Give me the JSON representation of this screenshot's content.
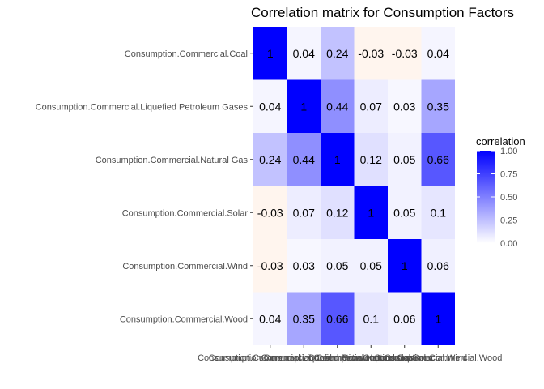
{
  "chart_data": {
    "type": "heatmap",
    "title": "Correlation matrix for Consumption Factors",
    "xlabel": "",
    "ylabel": "",
    "variables": [
      "Consumption.Commercial.Coal",
      "Consumption.Commercial.Liquefied Petroleum Gases",
      "Consumption.Commercial.Natural Gas",
      "Consumption.Commercial.Solar",
      "Consumption.Commercial.Wind",
      "Consumption.Commercial.Wood"
    ],
    "matrix": [
      [
        1,
        0.04,
        0.24,
        -0.03,
        -0.03,
        0.04
      ],
      [
        0.04,
        1,
        0.44,
        0.07,
        0.03,
        0.35
      ],
      [
        0.24,
        0.44,
        1,
        0.12,
        0.05,
        0.66
      ],
      [
        -0.03,
        0.07,
        0.12,
        1,
        0.05,
        0.1
      ],
      [
        -0.03,
        0.03,
        0.05,
        0.05,
        1,
        0.06
      ],
      [
        0.04,
        0.35,
        0.66,
        0.1,
        0.06,
        1
      ]
    ],
    "legend": {
      "title": "correlation",
      "ticks": [
        "0.00",
        "0.25",
        "0.50",
        "0.75",
        "1.00"
      ],
      "range": [
        0,
        1
      ],
      "low_color": "#ffffff",
      "high_color": "#0000ff",
      "negative_color": "#fff5ee"
    },
    "grid": true,
    "legend_placement": "right"
  }
}
